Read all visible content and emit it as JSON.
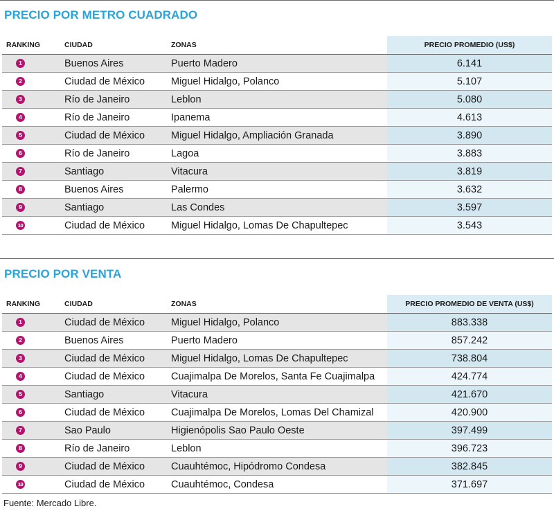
{
  "metro": {
    "title": "PRECIO POR METRO CUADRADO",
    "headers": {
      "rank": "RANKING",
      "city": "CIUDAD",
      "zone": "ZONAS",
      "price": "PRECIO PROMEDIO (US$)"
    },
    "rows": [
      {
        "rank": "1",
        "city": "Buenos Aires",
        "zone": "Puerto Madero",
        "price": "6.141"
      },
      {
        "rank": "2",
        "city": "Ciudad de México",
        "zone": "Miguel Hidalgo, Polanco",
        "price": "5.107"
      },
      {
        "rank": "3",
        "city": "Río de Janeiro",
        "zone": "Leblon",
        "price": "5.080"
      },
      {
        "rank": "4",
        "city": "Río de Janeiro",
        "zone": "Ipanema",
        "price": "4.613"
      },
      {
        "rank": "5",
        "city": "Ciudad de México",
        "zone": "Miguel Hidalgo, Ampliación Granada",
        "price": "3.890"
      },
      {
        "rank": "6",
        "city": "Río de Janeiro",
        "zone": "Lagoa",
        "price": "3.883"
      },
      {
        "rank": "7",
        "city": "Santiago",
        "zone": "Vitacura",
        "price": "3.819"
      },
      {
        "rank": "8",
        "city": "Buenos Aires",
        "zone": "Palermo",
        "price": "3.632"
      },
      {
        "rank": "9",
        "city": "Santiago",
        "zone": "Las Condes",
        "price": "3.597"
      },
      {
        "rank": "10",
        "city": "Ciudad de México",
        "zone": "Miguel Hidalgo, Lomas De Chapultepec",
        "price": "3.543"
      }
    ]
  },
  "venta": {
    "title": "PRECIO POR VENTA",
    "headers": {
      "rank": "RANKING",
      "city": "CIUDAD",
      "zone": "ZONAS",
      "price": "PRECIO PROMEDIO DE VENTA (US$)"
    },
    "rows": [
      {
        "rank": "1",
        "city": "Ciudad de México",
        "zone": "Miguel Hidalgo, Polanco",
        "price": "883.338"
      },
      {
        "rank": "2",
        "city": "Buenos Aires",
        "zone": "Puerto Madero",
        "price": "857.242"
      },
      {
        "rank": "3",
        "city": "Ciudad de México",
        "zone": "Miguel Hidalgo, Lomas De Chapultepec",
        "price": "738.804"
      },
      {
        "rank": "4",
        "city": "Ciudad de México",
        "zone": "Cuajimalpa De Morelos, Santa Fe Cuajimalpa",
        "price": "424.774"
      },
      {
        "rank": "5",
        "city": "Santiago",
        "zone": "Vitacura",
        "price": "421.670"
      },
      {
        "rank": "6",
        "city": "Ciudad de México",
        "zone": "Cuajimalpa De Morelos, Lomas Del Chamizal",
        "price": "420.900"
      },
      {
        "rank": "7",
        "city": "Sao Paulo",
        "zone": "Higienópolis Sao Paulo Oeste",
        "price": "397.499"
      },
      {
        "rank": "8",
        "city": "Río de Janeiro",
        "zone": "Leblon",
        "price": "396.723"
      },
      {
        "rank": "9",
        "city": "Ciudad de México",
        "zone": "Cuauhtémoc, Hipódromo Condesa",
        "price": "382.845"
      },
      {
        "rank": "10",
        "city": "Ciudad de México",
        "zone": "Cuauhtémoc, Condesa",
        "price": "371.697"
      }
    ]
  },
  "source": "Fuente: Mercado Libre.",
  "colors": {
    "title": "#2aa4d8",
    "badge": "#b5136e",
    "price_col": "#d3e7f1",
    "row_alt": "#e5e5e5"
  }
}
